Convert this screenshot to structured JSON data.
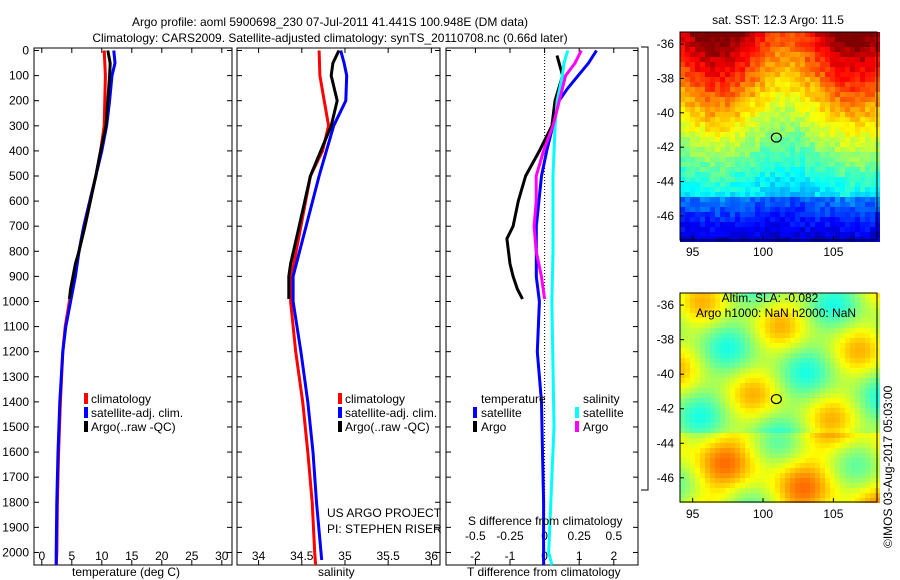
{
  "title_line1": "Argo profile: aoml 5900698_230 07-Jul-2011 41.441S 100.948E (DM data)",
  "title_line2": "Climatology: CARS2009. Satellite-adjusted climatology: synTS_20110708.nc (0.66d later)",
  "colors": {
    "climatology": "#ff0000",
    "satellite": "#0000ff",
    "argo": "#000000",
    "sal_satellite": "#00ffff",
    "sal_argo": "#ff00ff"
  },
  "chart_data": [
    {
      "type": "line",
      "name": "temperature",
      "xlabel": "temperature (deg C)",
      "ylabel": "",
      "xlim": [
        -1.3,
        31.7
      ],
      "ylim": [
        2050,
        -10
      ],
      "xticks": [
        0,
        5,
        10,
        15,
        20,
        25,
        30
      ],
      "xtick_labels": [
        "0",
        "5",
        "10",
        "15",
        "20",
        "25",
        "30"
      ],
      "yticks": [
        0,
        100,
        200,
        300,
        400,
        500,
        600,
        700,
        800,
        900,
        1000,
        1100,
        1200,
        1300,
        1400,
        1500,
        1600,
        1700,
        1800,
        1900,
        2000
      ],
      "ytick_labels": [
        "0",
        "100",
        "200",
        "300",
        "400",
        "500",
        "600",
        "700",
        "800",
        "900",
        "1000",
        "1100",
        "1200",
        "1300",
        "1400",
        "1500",
        "1600",
        "1700",
        "1800",
        "1900",
        "2000"
      ],
      "legend": [
        "climatology",
        "satellite-adj. clim.",
        "Argo(..raw -QC)"
      ],
      "series": [
        {
          "name": "climatology",
          "color": "#ff0000",
          "depth": [
            0,
            50,
            100,
            200,
            300,
            400,
            500,
            600,
            700,
            800,
            900,
            1000,
            1100,
            1200,
            1300,
            1400,
            1600,
            1800,
            2000,
            2050
          ],
          "values": [
            10.4,
            10.5,
            10.6,
            10.5,
            10.4,
            9.8,
            9.0,
            8.0,
            7.0,
            6.2,
            5.5,
            4.6,
            3.9,
            3.5,
            3.3,
            3.1,
            2.8,
            2.6,
            2.5,
            2.4
          ]
        },
        {
          "name": "satellite-adj. clim.",
          "color": "#0000ff",
          "depth": [
            0,
            50,
            100,
            200,
            300,
            400,
            500,
            600,
            700,
            800,
            900,
            1000,
            1100,
            1200,
            1400,
            1600,
            1800,
            2000,
            2050
          ],
          "values": [
            12.0,
            12.2,
            11.7,
            11.3,
            10.8,
            10.0,
            9.0,
            8.0,
            7.0,
            6.2,
            5.6,
            4.8,
            4.0,
            3.5,
            3.0,
            2.7,
            2.5,
            2.4,
            2.4
          ]
        },
        {
          "name": "Argo(..raw -QC)",
          "color": "#000000",
          "depth": [
            0,
            50,
            100,
            200,
            300,
            400,
            500,
            600,
            700,
            800,
            850,
            900,
            950,
            990
          ],
          "values": [
            11.0,
            11.4,
            11.3,
            11.0,
            10.7,
            9.8,
            9.0,
            8.1,
            7.2,
            6.2,
            5.6,
            5.2,
            4.8,
            4.6
          ]
        }
      ]
    },
    {
      "type": "line",
      "name": "salinity",
      "xlabel": "salinity",
      "xlim": [
        33.75,
        36.1
      ],
      "ylim": [
        2050,
        -10
      ],
      "xticks": [
        34,
        34.5,
        35,
        35.5,
        36
      ],
      "xtick_labels": [
        "34",
        "34.5",
        "35",
        "35.5",
        "36"
      ],
      "legend": [
        "climatology",
        "satellite-adj. clim.",
        "Argo(..raw -QC)"
      ],
      "annotations": [
        "US ARGO PROJECT",
        "PI: STEPHEN RISER"
      ],
      "series": [
        {
          "name": "climatology",
          "color": "#ff0000",
          "depth": [
            0,
            100,
            200,
            300,
            400,
            500,
            700,
            900,
            1000,
            1200,
            1400,
            1600,
            1800,
            2000,
            2050
          ],
          "values": [
            34.7,
            34.71,
            34.76,
            34.81,
            34.74,
            34.6,
            34.49,
            34.38,
            34.37,
            34.43,
            34.51,
            34.57,
            34.62,
            34.65,
            34.66
          ]
        },
        {
          "name": "satellite-adj. clim.",
          "color": "#0000ff",
          "depth": [
            0,
            50,
            100,
            200,
            300,
            500,
            700,
            900,
            1000,
            1200,
            1400,
            1600,
            1800,
            1950,
            2030
          ],
          "values": [
            34.95,
            34.99,
            35.02,
            35.01,
            34.87,
            34.7,
            34.55,
            34.4,
            34.4,
            34.49,
            34.57,
            34.63,
            34.67,
            34.71,
            34.73
          ]
        },
        {
          "name": "Argo(..raw -QC)",
          "color": "#000000",
          "depth": [
            0,
            50,
            100,
            200,
            300,
            500,
            700,
            850,
            900,
            990
          ],
          "values": [
            34.93,
            34.86,
            34.84,
            34.91,
            34.84,
            34.6,
            34.47,
            34.37,
            34.35,
            34.35
          ]
        }
      ]
    },
    {
      "type": "line",
      "name": "difference",
      "xlabel": "T difference from climatology",
      "x2label": "S difference from climatology",
      "xlim": [
        -2.85,
        2.7
      ],
      "x2lim": [
        -0.7125,
        0.675
      ],
      "ylim": [
        2050,
        -10
      ],
      "xticks": [
        -2,
        -1,
        0,
        1,
        2
      ],
      "xtick_labels": [
        "-2",
        "-1",
        "0",
        "1",
        "2"
      ],
      "x2ticks": [
        -0.5,
        -0.25,
        0,
        0.25,
        0.5
      ],
      "x2tick_labels": [
        "-0.5",
        "-0.25",
        "0",
        "0.25",
        "0.5"
      ],
      "legend_headers": [
        "temperature",
        "salinity"
      ],
      "legend": [
        "satellite",
        "Argo",
        "satellite",
        "Argo"
      ],
      "series": [
        {
          "name": "T satellite",
          "axis": "T",
          "color": "#0000ff",
          "depth": [
            0,
            50,
            100,
            150,
            200,
            300,
            400,
            500,
            700,
            900,
            1000,
            1200,
            1400,
            1600,
            1800,
            2000,
            2050
          ],
          "values": [
            1.5,
            1.27,
            0.97,
            0.67,
            0.42,
            0.24,
            0.06,
            -0.09,
            -0.24,
            -0.24,
            -0.15,
            -0.21,
            -0.09,
            -0.06,
            -0.03,
            -0.03,
            -0.03
          ]
        },
        {
          "name": "T Argo",
          "axis": "T",
          "color": "#000000",
          "depth": [
            20,
            100,
            200,
            300,
            400,
            500,
            600,
            700,
            750,
            850,
            900,
            950,
            990
          ],
          "values": [
            0.36,
            0.52,
            0.3,
            0.21,
            -0.15,
            -0.55,
            -0.76,
            -0.91,
            -1.09,
            -1.0,
            -0.91,
            -0.79,
            -0.64
          ]
        },
        {
          "name": "S satellite",
          "axis": "S",
          "color": "#00ffff",
          "depth": [
            0,
            50,
            100,
            200,
            300,
            500,
            800,
            1000,
            1500,
            2000,
            2050
          ],
          "values": [
            0.167,
            0.14,
            0.129,
            0.091,
            0.076,
            0.061,
            0.061,
            0.053,
            0.068,
            0.03,
            0.053
          ]
        },
        {
          "name": "S Argo",
          "axis": "S",
          "color": "#ff00ff",
          "depth": [
            0,
            50,
            100,
            200,
            300,
            400,
            500,
            600,
            700,
            800,
            900,
            990
          ],
          "values": [
            0.265,
            0.22,
            0.152,
            0.106,
            0.061,
            -0.008,
            -0.061,
            -0.061,
            -0.076,
            -0.061,
            -0.023,
            0.0
          ]
        }
      ]
    },
    {
      "type": "heatmap",
      "name": "sst-map",
      "title": "sat. SST: 12.3 Argo: 11.5",
      "xlim": [
        94.1,
        108.1
      ],
      "ylim": [
        -47.4,
        -35.3
      ],
      "xticks": [
        95,
        100,
        105
      ],
      "xtick_labels": [
        "95",
        "100",
        "105"
      ],
      "yticks": [
        -36,
        -38,
        -40,
        -42,
        -44,
        -46
      ],
      "ytick_labels": [
        "-36",
        "-38",
        "-40",
        "-42",
        "-44",
        "-46"
      ],
      "argo_position": [
        100.948,
        -41.441
      ]
    },
    {
      "type": "heatmap",
      "name": "sla-map",
      "title": "Altim. SLA: -0.082",
      "subtitle": "Argo h1000: NaN h2000: NaN",
      "xlim": [
        94.1,
        108.1
      ],
      "ylim": [
        -47.4,
        -35.3
      ],
      "xticks": [
        95,
        100,
        105
      ],
      "xtick_labels": [
        "95",
        "100",
        "105"
      ],
      "yticks": [
        -36,
        -38,
        -40,
        -42,
        -44,
        -46
      ],
      "ytick_labels": [
        "-36",
        "-38",
        "-40",
        "-42",
        "-44",
        "-46"
      ],
      "argo_position": [
        100.948,
        -41.441
      ]
    }
  ],
  "watermark": "©IMOS 03-Aug-2017 05:03:00"
}
